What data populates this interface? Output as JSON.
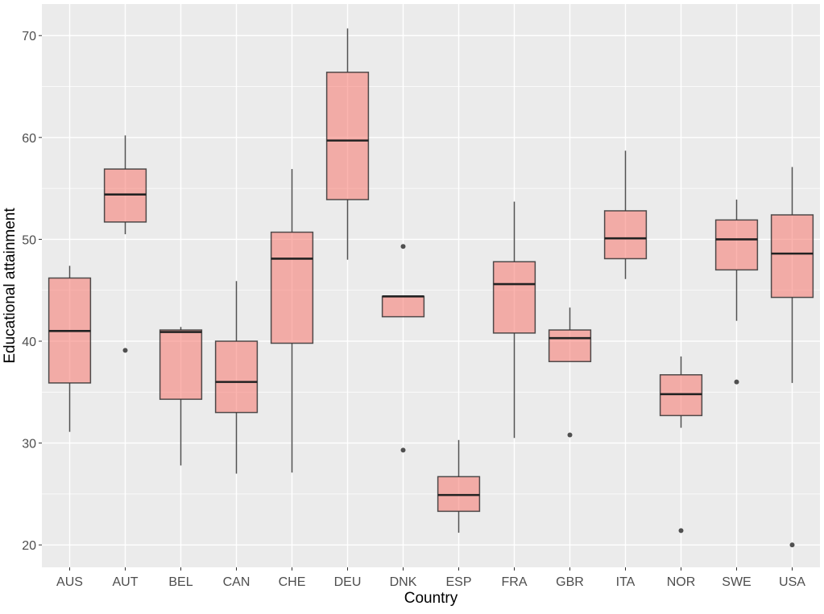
{
  "chart_data": {
    "type": "boxplot",
    "title": "",
    "xlabel": "Country",
    "ylabel": "Educational attainment",
    "ylim": [
      17.8,
      73.1
    ],
    "yticks": [
      20,
      30,
      40,
      50,
      60,
      70
    ],
    "grid": true,
    "legend": "none",
    "colors": {
      "box_fill": "#F8766D",
      "panel": "#EBEBEB",
      "grid": "#FFFFFF",
      "stroke": "#333333"
    },
    "categories": [
      "AUS",
      "AUT",
      "BEL",
      "CAN",
      "CHE",
      "DEU",
      "DNK",
      "ESP",
      "FRA",
      "GBR",
      "ITA",
      "NOR",
      "SWE",
      "USA"
    ],
    "boxes": [
      {
        "country": "AUS",
        "lower": 31.1,
        "q1": 35.9,
        "median": 41.0,
        "q3": 46.2,
        "upper": 47.4,
        "outliers": []
      },
      {
        "country": "AUT",
        "lower": 50.5,
        "q1": 51.7,
        "median": 54.4,
        "q3": 56.9,
        "upper": 60.2,
        "outliers": [
          39.1
        ]
      },
      {
        "country": "BEL",
        "lower": 27.8,
        "q1": 34.3,
        "median": 40.9,
        "q3": 41.1,
        "upper": 41.4,
        "outliers": []
      },
      {
        "country": "CAN",
        "lower": 27.0,
        "q1": 33.0,
        "median": 36.0,
        "q3": 40.0,
        "upper": 45.9,
        "outliers": []
      },
      {
        "country": "CHE",
        "lower": 27.1,
        "q1": 39.8,
        "median": 48.1,
        "q3": 50.7,
        "upper": 56.9,
        "outliers": []
      },
      {
        "country": "DEU",
        "lower": 48.0,
        "q1": 53.9,
        "median": 59.7,
        "q3": 66.4,
        "upper": 70.7,
        "outliers": []
      },
      {
        "country": "DNK",
        "lower": 42.4,
        "q1": 42.4,
        "median": 44.4,
        "q3": 44.4,
        "upper": 44.4,
        "outliers": [
          49.3,
          29.3
        ]
      },
      {
        "country": "ESP",
        "lower": 21.2,
        "q1": 23.3,
        "median": 24.9,
        "q3": 26.7,
        "upper": 30.3,
        "outliers": []
      },
      {
        "country": "FRA",
        "lower": 30.5,
        "q1": 40.8,
        "median": 45.6,
        "q3": 47.8,
        "upper": 53.7,
        "outliers": []
      },
      {
        "country": "GBR",
        "lower": 38.0,
        "q1": 38.0,
        "median": 40.3,
        "q3": 41.1,
        "upper": 43.3,
        "outliers": [
          30.8
        ]
      },
      {
        "country": "ITA",
        "lower": 46.1,
        "q1": 48.1,
        "median": 50.1,
        "q3": 52.8,
        "upper": 58.7,
        "outliers": []
      },
      {
        "country": "NOR",
        "lower": 31.5,
        "q1": 32.7,
        "median": 34.8,
        "q3": 36.7,
        "upper": 38.5,
        "outliers": [
          21.4
        ]
      },
      {
        "country": "SWE",
        "lower": 42.0,
        "q1": 47.0,
        "median": 50.0,
        "q3": 51.9,
        "upper": 53.9,
        "outliers": [
          36.0
        ]
      },
      {
        "country": "USA",
        "lower": 35.9,
        "q1": 44.3,
        "median": 48.6,
        "q3": 52.4,
        "upper": 57.1,
        "outliers": [
          20.0
        ]
      }
    ]
  }
}
